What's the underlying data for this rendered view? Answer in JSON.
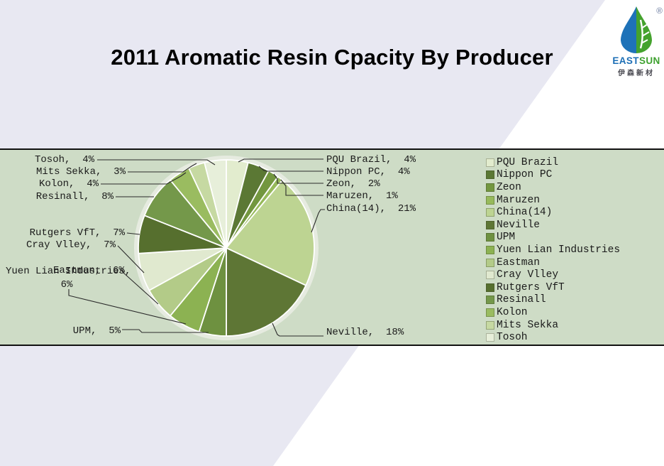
{
  "title": "2011 Aromatic Resin Cpacity By Producer",
  "logo": {
    "brand_east": "EAST",
    "brand_sun": "SUN",
    "registered_mark": "®",
    "chinese_name": "伊森新材"
  },
  "colors": {
    "page_bg": "#e8e8f2",
    "panel_bg": "#cedcc6",
    "border": "#111111",
    "ink": "#1a1a1a",
    "halo": "#e6ebe0",
    "leader": "#2a2a2a",
    "logo_blue": "#1e72b8",
    "logo_green": "#44a22d"
  },
  "chart_data": {
    "type": "pie",
    "title": "2011 Aromatic Resin Cpacity By Producer",
    "legend_position": "right",
    "start_angle_deg": 0,
    "direction": "clockwise",
    "units": "percent",
    "total": 100,
    "slices": [
      {
        "name": "PQU Brazil",
        "value_pct": 4,
        "color": "#e2ecce",
        "callout": "PQU Brazil,  4%"
      },
      {
        "name": "Nippon PC",
        "value_pct": 4,
        "color": "#5b7834",
        "callout": "Nippon PC,  4%"
      },
      {
        "name": "Zeon",
        "value_pct": 2,
        "color": "#73973f",
        "callout": "Zeon,  2%"
      },
      {
        "name": "Maruzen",
        "value_pct": 1,
        "color": "#97ba5b",
        "callout": "Maruzen,  1%"
      },
      {
        "name": "China(14)",
        "value_pct": 21,
        "color": "#bdd492",
        "callout": "China(14),  21%"
      },
      {
        "name": "Neville",
        "value_pct": 18,
        "color": "#5e7635",
        "callout": "Neville,  18%"
      },
      {
        "name": "UPM",
        "value_pct": 5,
        "color": "#6e9140",
        "callout": "UPM,  5%"
      },
      {
        "name": "Yuen Lian Industries",
        "value_pct": 6,
        "color": "#8cb252",
        "callout": "Yuen Lian Industries,\n6%"
      },
      {
        "name": "Eastman",
        "value_pct": 6,
        "color": "#b3cb88",
        "callout": "Eastman,  6%"
      },
      {
        "name": "Cray Vlley",
        "value_pct": 7,
        "color": "#e0e9cf",
        "callout": "Cray Vlley,  7%"
      },
      {
        "name": "Rutgers VfT",
        "value_pct": 7,
        "color": "#566f2e",
        "callout": "Rutgers VfT,  7%"
      },
      {
        "name": "Resinall",
        "value_pct": 8,
        "color": "#74984a",
        "callout": "Resinall,  8%"
      },
      {
        "name": "Kolon",
        "value_pct": 4,
        "color": "#9abc60",
        "callout": "Kolon,  4%"
      },
      {
        "name": "Mits Sekka",
        "value_pct": 3,
        "color": "#c6d9a2",
        "callout": "Mits Sekka,  3%"
      },
      {
        "name": "Tosoh",
        "value_pct": 4,
        "color": "#e7efda",
        "callout": "Tosoh,  4%"
      }
    ]
  }
}
